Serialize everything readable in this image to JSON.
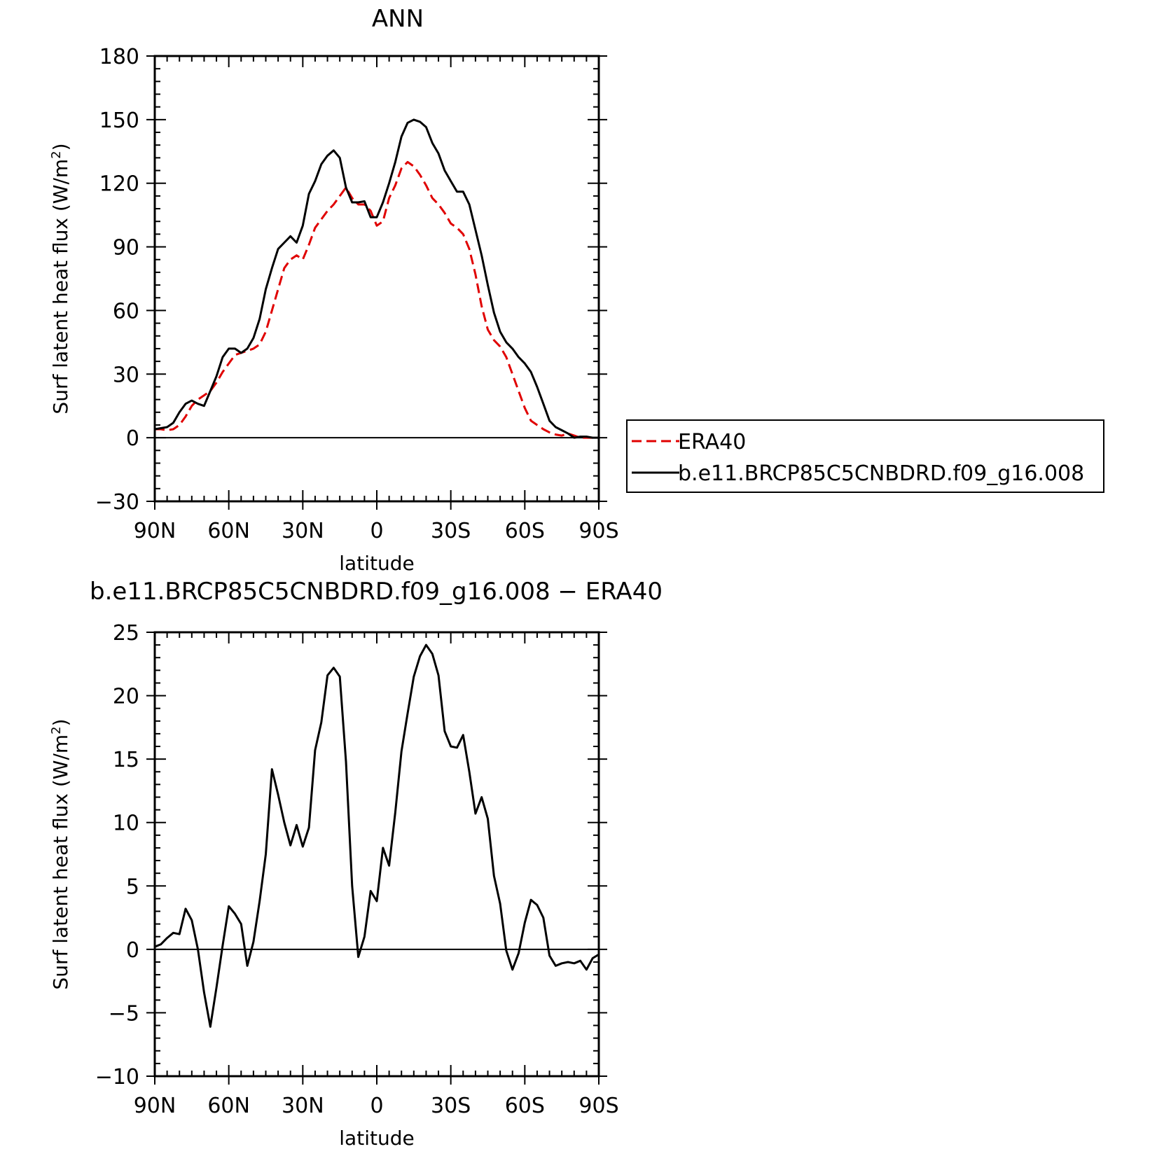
{
  "chart_data": [
    {
      "type": "line",
      "title": "ANN",
      "xlabel": "latitude",
      "ylabel": "Surf latent heat flux (W/m",
      "ylabel_sup": "2",
      "ylabel_close": ")",
      "xlim": [
        90,
        -90
      ],
      "ylim": [
        -30,
        180
      ],
      "xticks": [
        {
          "value": 90,
          "label": "90N"
        },
        {
          "value": 60,
          "label": "60N"
        },
        {
          "value": 30,
          "label": "30N"
        },
        {
          "value": 0,
          "label": "0"
        },
        {
          "value": -30,
          "label": "30S"
        },
        {
          "value": -60,
          "label": "60S"
        },
        {
          "value": -90,
          "label": "90S"
        }
      ],
      "yticks": [
        {
          "value": 180,
          "label": "180"
        },
        {
          "value": 150,
          "label": "150"
        },
        {
          "value": 120,
          "label": "120"
        },
        {
          "value": 90,
          "label": "90"
        },
        {
          "value": 60,
          "label": "60"
        },
        {
          "value": 30,
          "label": "30"
        },
        {
          "value": 0,
          "label": "0"
        },
        {
          "value": -30,
          "label": "−30"
        }
      ],
      "legend": {
        "position": "right",
        "entries": [
          {
            "name": "ERA40",
            "color": "#e00000",
            "dash": true
          },
          {
            "name": "b.e11.BRCP85C5CNBDRD.f09_g16.008",
            "color": "#000000",
            "dash": false
          }
        ]
      },
      "series": [
        {
          "name": "ERA40",
          "color": "#e00000",
          "dash": true,
          "x": [
            90,
            87.5,
            85,
            82.5,
            80,
            77.5,
            75,
            72.5,
            70,
            67.5,
            65,
            62.5,
            60,
            57.5,
            55,
            52.5,
            50,
            47.5,
            45,
            42.5,
            40,
            37.5,
            35,
            32.5,
            30,
            27.5,
            25,
            22.5,
            20,
            17.5,
            15,
            12.5,
            10,
            7.5,
            5,
            2.5,
            0,
            -2.5,
            -5,
            -7.5,
            -10,
            -12.5,
            -15,
            -17.5,
            -20,
            -22.5,
            -25,
            -27.5,
            -30,
            -32.5,
            -35,
            -37.5,
            -40,
            -42.5,
            -45,
            -47.5,
            -50,
            -52.5,
            -55,
            -57.5,
            -60,
            -62.5,
            -65,
            -67.5,
            -70,
            -72.5,
            -75,
            -77.5,
            -80,
            -82.5,
            -85,
            -87.5,
            -90
          ],
          "values": [
            4,
            4,
            3.5,
            4,
            6,
            10,
            15,
            18,
            20,
            22,
            26,
            31,
            35,
            39,
            40,
            41,
            42,
            44,
            50,
            60,
            70,
            80,
            84,
            86,
            84,
            91,
            99,
            103,
            107,
            110,
            114,
            118,
            113,
            110,
            110,
            107,
            100,
            102,
            113,
            119,
            127,
            130,
            128,
            124,
            119,
            113,
            110,
            106,
            101,
            99,
            96,
            89,
            77,
            62,
            51,
            46,
            43,
            38,
            30,
            22,
            14,
            8,
            6,
            4,
            2.5,
            1.5,
            1,
            2,
            1,
            0,
            0,
            0,
            0
          ]
        },
        {
          "name": "b.e11.BRCP85C5CNBDRD.f09_g16.008",
          "color": "#000000",
          "dash": false,
          "x": [
            90,
            87.5,
            85,
            82.5,
            80,
            77.5,
            75,
            72.5,
            70,
            67.5,
            65,
            62.5,
            60,
            57.5,
            55,
            52.5,
            50,
            47.5,
            45,
            42.5,
            40,
            37.5,
            35,
            32.5,
            30,
            27.5,
            25,
            22.5,
            20,
            17.5,
            15,
            12.5,
            10,
            7.5,
            5,
            2.5,
            0,
            -2.5,
            -5,
            -7.5,
            -10,
            -12.5,
            -15,
            -17.5,
            -20,
            -22.5,
            -25,
            -27.5,
            -30,
            -32.5,
            -35,
            -37.5,
            -40,
            -42.5,
            -45,
            -47.5,
            -50,
            -52.5,
            -55,
            -57.5,
            -60,
            -62.5,
            -65,
            -67.5,
            -70,
            -72.5,
            -75,
            -77.5,
            -80,
            -82.5,
            -85,
            -87.5,
            -90
          ],
          "values": [
            4,
            4.5,
            5,
            7,
            12,
            16,
            17.5,
            16,
            15,
            22,
            29,
            38,
            42,
            42,
            40,
            42,
            47,
            56,
            70,
            80,
            89,
            92,
            95,
            92,
            100,
            115,
            121,
            129,
            133,
            135.5,
            132,
            118,
            111,
            111,
            111.5,
            104,
            104,
            111,
            120,
            130,
            142,
            148.5,
            150,
            149,
            146.5,
            139,
            134,
            126,
            121,
            116,
            116,
            110,
            98,
            86,
            72,
            59,
            50,
            45,
            42,
            38,
            35,
            31,
            24,
            16,
            8,
            5,
            3.5,
            2,
            0,
            0.5,
            0.5,
            0,
            0
          ]
        }
      ]
    },
    {
      "type": "line",
      "title": "b.e11.BRCP85C5CNBDRD.f09_g16.008 − ERA40",
      "xlabel": "latitude",
      "ylabel": "Surf latent heat flux (W/m",
      "ylabel_sup": "2",
      "ylabel_close": ")",
      "xlim": [
        90,
        -90
      ],
      "ylim": [
        -10,
        25
      ],
      "xticks": [
        {
          "value": 90,
          "label": "90N"
        },
        {
          "value": 60,
          "label": "60N"
        },
        {
          "value": 30,
          "label": "30N"
        },
        {
          "value": 0,
          "label": "0"
        },
        {
          "value": -30,
          "label": "30S"
        },
        {
          "value": -60,
          "label": "60S"
        },
        {
          "value": -90,
          "label": "90S"
        }
      ],
      "yticks": [
        {
          "value": 25,
          "label": "25"
        },
        {
          "value": 20,
          "label": "20"
        },
        {
          "value": 15,
          "label": "15"
        },
        {
          "value": 10,
          "label": "10"
        },
        {
          "value": 5,
          "label": "5"
        },
        {
          "value": 0,
          "label": "0"
        },
        {
          "value": -5,
          "label": "−5"
        },
        {
          "value": -10,
          "label": "−10"
        }
      ],
      "series": [
        {
          "color": "#000000",
          "dash": false,
          "x": [
            90,
            87.5,
            85,
            82.5,
            80,
            77.5,
            75,
            72.5,
            70,
            67.5,
            65,
            62.5,
            60,
            57.5,
            55,
            52.5,
            50,
            47.5,
            45,
            42.5,
            40,
            37.5,
            35,
            32.5,
            30,
            27.5,
            25,
            22.5,
            20,
            17.5,
            15,
            12.5,
            10,
            7.5,
            5,
            2.5,
            0,
            -2.5,
            -5,
            -7.5,
            -10,
            -12.5,
            -15,
            -17.5,
            -20,
            -22.5,
            -25,
            -27.5,
            -30,
            -32.5,
            -35,
            -37.5,
            -40,
            -42.5,
            -45,
            -47.5,
            -50,
            -52.5,
            -55,
            -57.5,
            -60,
            -62.5,
            -65,
            -67.5,
            -70,
            -72.5,
            -75,
            -77.5,
            -80,
            -82.5,
            -85,
            -87.5,
            -90
          ],
          "values": [
            0.2,
            0.4,
            0.9,
            1.3,
            1.2,
            3.2,
            2.3,
            0,
            -3.4,
            -6.1,
            -3.0,
            0.3,
            3.4,
            2.8,
            2.0,
            -1.3,
            0.6,
            3.8,
            7.5,
            14.2,
            12.2,
            10.0,
            8.2,
            9.8,
            8.1,
            9.6,
            15.7,
            17.9,
            21.6,
            22.2,
            21.5,
            14.8,
            5.0,
            -0.6,
            1.0,
            4.6,
            3.8,
            8.0,
            6.6,
            10.8,
            15.6,
            18.6,
            21.5,
            23.1,
            24.0,
            23.3,
            21.6,
            17.2,
            16.0,
            15.9,
            16.9,
            14.0,
            10.7,
            12.0,
            10.3,
            5.8,
            3.6,
            -0.1,
            -1.6,
            -0.3,
            2.1,
            3.9,
            3.5,
            2.5,
            -0.5,
            -1.3,
            -1.1,
            -1.0,
            -1.1,
            -0.9,
            -1.6,
            -0.7,
            -0.4
          ]
        }
      ]
    }
  ]
}
